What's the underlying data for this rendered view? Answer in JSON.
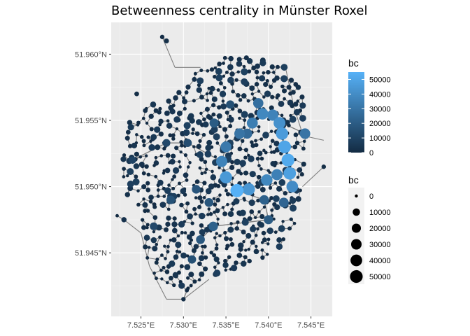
{
  "chart_data": {
    "type": "scatter",
    "title": "Betweenness centrality in Münster Roxel",
    "xlabel": "",
    "ylabel": "",
    "xlim": [
      7.5215,
      7.5475
    ],
    "ylim": [
      51.9402,
      51.9624
    ],
    "x_ticks": [
      7.525,
      7.53,
      7.535,
      7.54,
      7.545
    ],
    "x_tick_labels": [
      "7.525°E",
      "7.530°E",
      "7.535°E",
      "7.540°E",
      "7.545°E"
    ],
    "y_ticks": [
      51.945,
      51.95,
      51.955,
      51.96
    ],
    "y_tick_labels": [
      "51.945°N",
      "51.950°N",
      "51.955°N",
      "51.960°N"
    ],
    "grid": true,
    "background": "#ebebeb",
    "edge_color": "#7f7f7f",
    "color_low": "#132b43",
    "color_high": "#56b1f7",
    "bc_range": [
      0,
      55000
    ],
    "legend_color": {
      "title": "bc",
      "breaks": [
        0,
        10000,
        20000,
        30000,
        40000,
        50000
      ],
      "labels": [
        "0",
        "10000",
        "20000",
        "30000",
        "40000",
        "50000"
      ]
    },
    "legend_size": {
      "title": "bc",
      "breaks": [
        0,
        10000,
        20000,
        30000,
        40000,
        50000
      ],
      "labels": [
        "0",
        "10000",
        "20000",
        "30000",
        "40000",
        "50000"
      ]
    },
    "high_nodes": [
      {
        "x": 7.5393,
        "y": 51.9555,
        "bc": 38000
      },
      {
        "x": 7.5405,
        "y": 51.9554,
        "bc": 36000
      },
      {
        "x": 7.5413,
        "y": 51.9548,
        "bc": 42000
      },
      {
        "x": 7.5416,
        "y": 51.954,
        "bc": 46000
      },
      {
        "x": 7.5419,
        "y": 51.953,
        "bc": 50000
      },
      {
        "x": 7.5423,
        "y": 51.952,
        "bc": 52000
      },
      {
        "x": 7.5425,
        "y": 51.951,
        "bc": 48000
      },
      {
        "x": 7.5428,
        "y": 51.95,
        "bc": 40000
      },
      {
        "x": 7.5381,
        "y": 51.9548,
        "bc": 34000
      },
      {
        "x": 7.5366,
        "y": 51.954,
        "bc": 30000
      },
      {
        "x": 7.535,
        "y": 51.953,
        "bc": 32000
      },
      {
        "x": 7.5345,
        "y": 51.9519,
        "bc": 36000
      },
      {
        "x": 7.535,
        "y": 51.9507,
        "bc": 45000
      },
      {
        "x": 7.5363,
        "y": 51.9497,
        "bc": 55000
      },
      {
        "x": 7.5377,
        "y": 51.9498,
        "bc": 44000
      },
      {
        "x": 7.5398,
        "y": 51.9505,
        "bc": 38000
      },
      {
        "x": 7.541,
        "y": 51.9509,
        "bc": 35000
      },
      {
        "x": 7.5388,
        "y": 51.9563,
        "bc": 28000
      },
      {
        "x": 7.5443,
        "y": 51.954,
        "bc": 30000
      },
      {
        "x": 7.5418,
        "y": 51.9488,
        "bc": 24000
      },
      {
        "x": 7.54,
        "y": 51.9475,
        "bc": 20000
      },
      {
        "x": 7.5335,
        "y": 51.947,
        "bc": 22000
      },
      {
        "x": 7.532,
        "y": 51.946,
        "bc": 18000
      },
      {
        "x": 7.531,
        "y": 51.9445,
        "bc": 15000
      },
      {
        "x": 7.5285,
        "y": 51.949,
        "bc": 16000
      },
      {
        "x": 7.5265,
        "y": 51.947,
        "bc": 12000
      },
      {
        "x": 7.524,
        "y": 51.952,
        "bc": 10000
      },
      {
        "x": 7.5375,
        "y": 51.954,
        "bc": 26000
      },
      {
        "x": 7.5336,
        "y": 51.9548,
        "bc": 20000
      },
      {
        "x": 7.533,
        "y": 51.9488,
        "bc": 18000
      },
      {
        "x": 7.5305,
        "y": 51.9533,
        "bc": 14000
      },
      {
        "x": 7.528,
        "y": 51.9533,
        "bc": 12000
      },
      {
        "x": 7.5395,
        "y": 51.949,
        "bc": 22000
      },
      {
        "x": 7.5315,
        "y": 51.9498,
        "bc": 17000
      },
      {
        "x": 7.5355,
        "y": 51.9562,
        "bc": 15000
      }
    ]
  }
}
